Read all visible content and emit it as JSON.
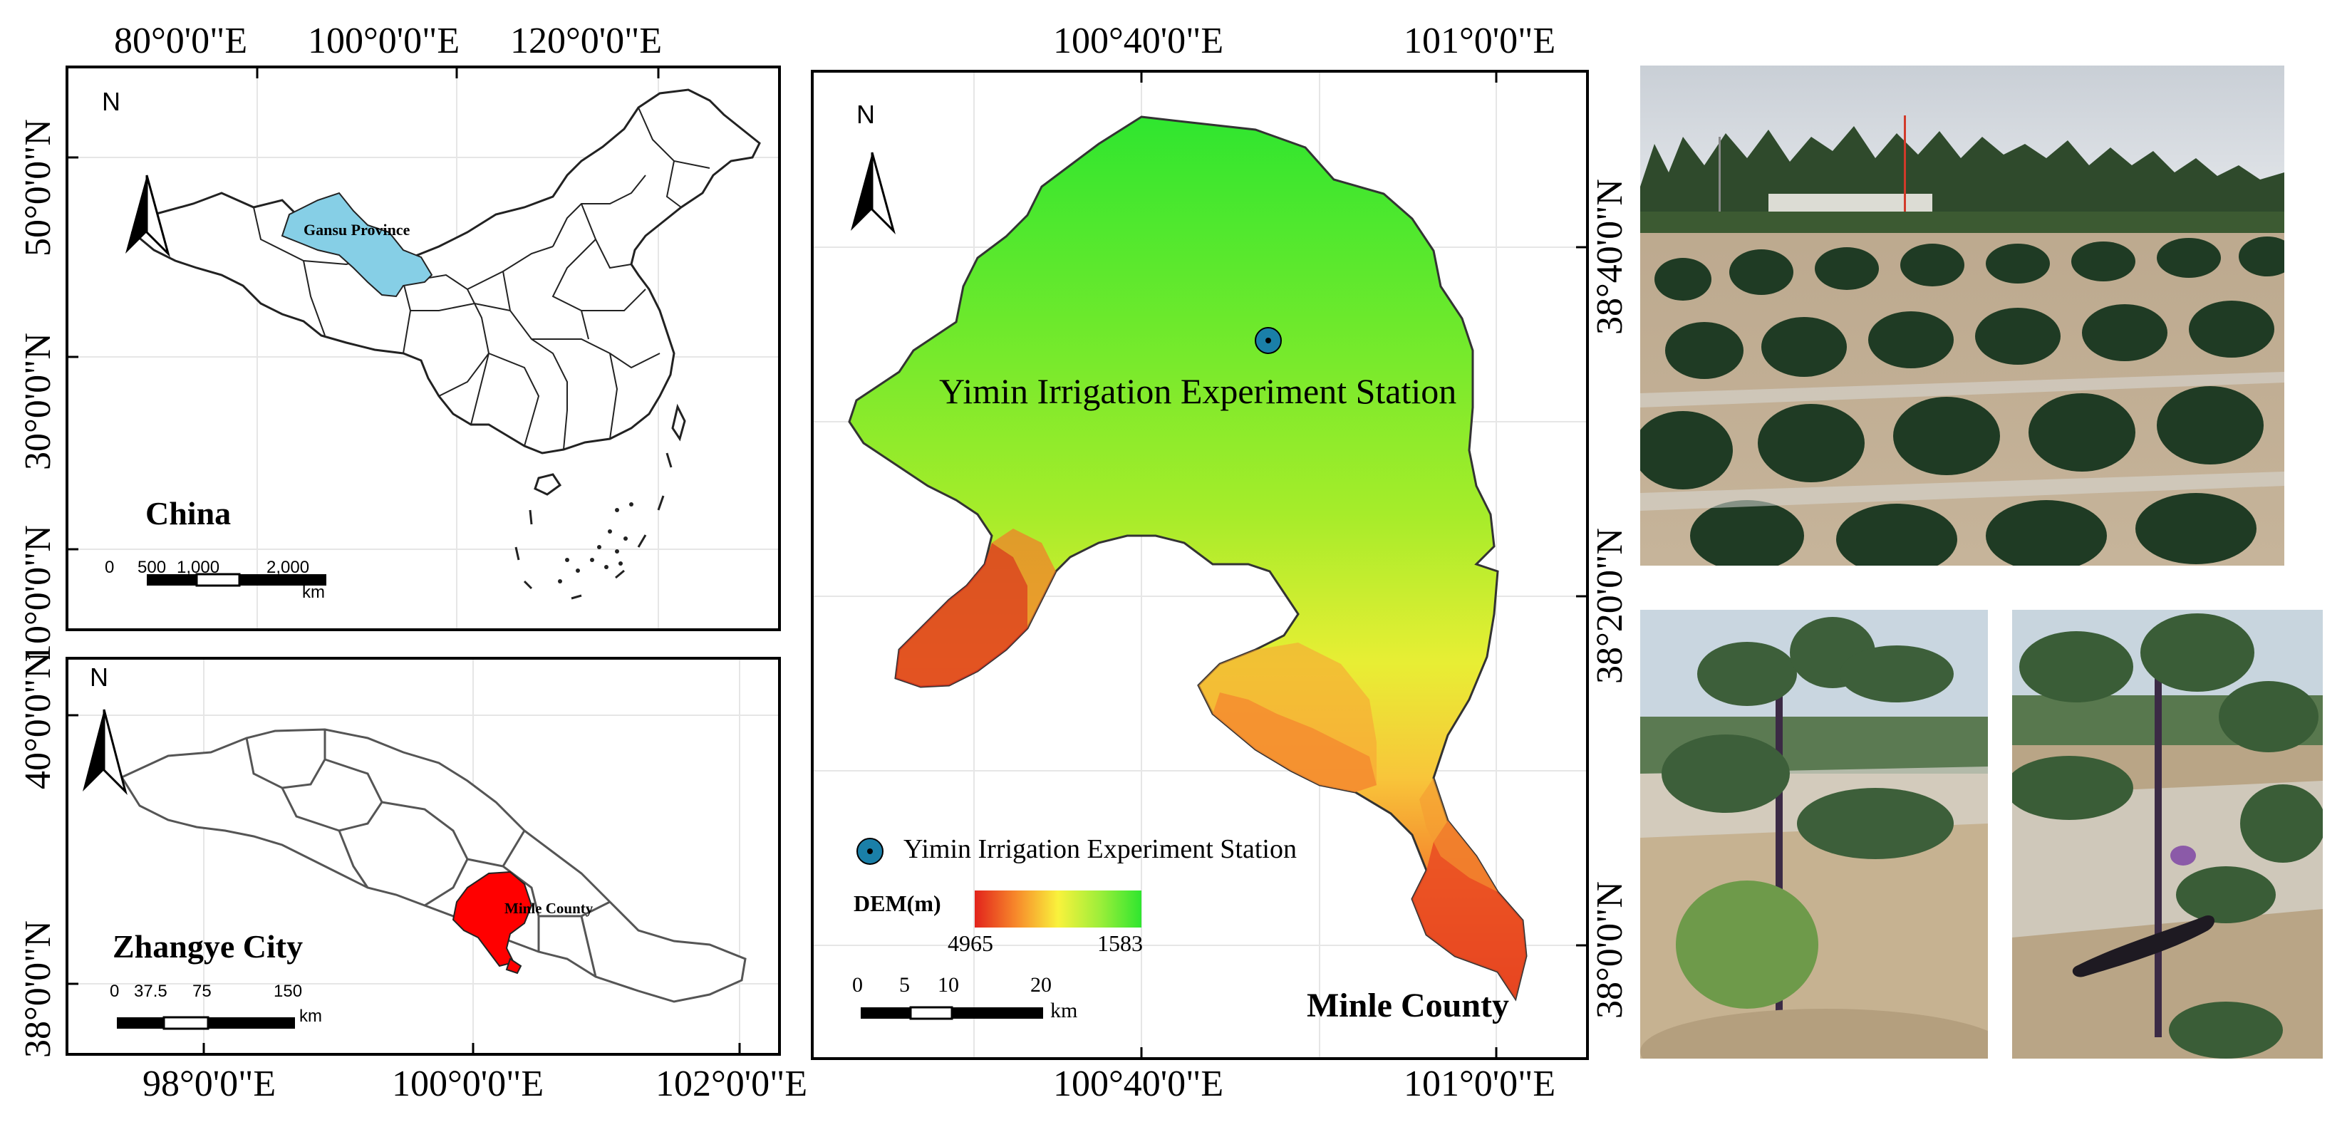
{
  "china_map": {
    "top_lon_labels": [
      "80°0'0\"E",
      "100°0'0\"E",
      "120°0'0\"E"
    ],
    "left_lat_labels": [
      "50°0'0\"N",
      "30°0'0\"N",
      "10°0'0\"N"
    ],
    "north_label": "N",
    "region_label": "Gansu Province",
    "name": "China",
    "scale_labels": [
      "0",
      "500",
      "1,000",
      "2,000",
      "km"
    ]
  },
  "zhangye_map": {
    "bottom_lon_labels": [
      "98°0'0\"E",
      "100°0'0\"E",
      "102°0'0\"E"
    ],
    "left_lat_labels": [
      "40°0'0\"N",
      "38°0'0\"N"
    ],
    "north_label": "N",
    "region_label": "Minle County",
    "name": "Zhangye City",
    "scale_labels": [
      "0",
      "37.5",
      "75",
      "150",
      "km"
    ]
  },
  "minle_map": {
    "top_lon_labels": [
      "100°40'0\"E",
      "101°0'0\"E"
    ],
    "bottom_lon_labels": [
      "100°40'0\"E",
      "101°0'0\"E"
    ],
    "right_lat_labels": [
      "38°40'0\"N",
      "38°20'0\"N",
      "38°0'0\"N"
    ],
    "north_label": "N",
    "station_label": "Yimin Irrigation Experiment Station",
    "legend_station": "Yimin Irrigation Experiment Station",
    "dem_label": "DEM(m)",
    "dem_high": "4965",
    "dem_low": "1583",
    "scale_labels": [
      "0",
      "5",
      "10",
      "20",
      "km"
    ],
    "name": "Minle County",
    "colors": {
      "dem_high": "#d7191c",
      "dem_mid": "#f5e63c",
      "dem_low": "#33e833",
      "station": "#1a7fa8"
    }
  },
  "photos": {
    "top": "field-of-eggplant-plants-with-station-icon",
    "bottom_left": "eggplant-seedling-close-up",
    "bottom_right": "eggplant-fruit-close-up"
  }
}
